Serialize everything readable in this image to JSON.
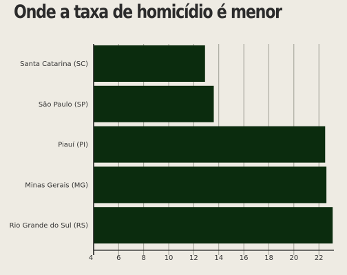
{
  "chart_data": {
    "type": "bar",
    "orientation": "horizontal",
    "title": "Onde a taxa de homicídio é menor",
    "categories": [
      "Santa Catarina (SC)",
      "São Paulo (SP)",
      "Piauí (PI)",
      "Minas Gerais (MG)",
      "Rio Grande do Sul (RS)"
    ],
    "values": [
      12.9,
      13.6,
      22.5,
      22.6,
      23.1
    ],
    "xlim": [
      4,
      23.2
    ],
    "xticks": [
      4,
      6,
      8,
      10,
      12,
      14,
      16,
      18,
      20,
      22
    ],
    "tick_labels": [
      "4",
      "6",
      "8",
      "10",
      "12",
      "14",
      "16",
      "18",
      "20",
      "22"
    ],
    "xlabel": "",
    "ylabel": "",
    "grid": "vertical",
    "legend": "none",
    "colors": {
      "bar": "#0b2c0e",
      "grid": "#8a8a80",
      "axis": "#222222",
      "background": "#eeebe3"
    }
  }
}
